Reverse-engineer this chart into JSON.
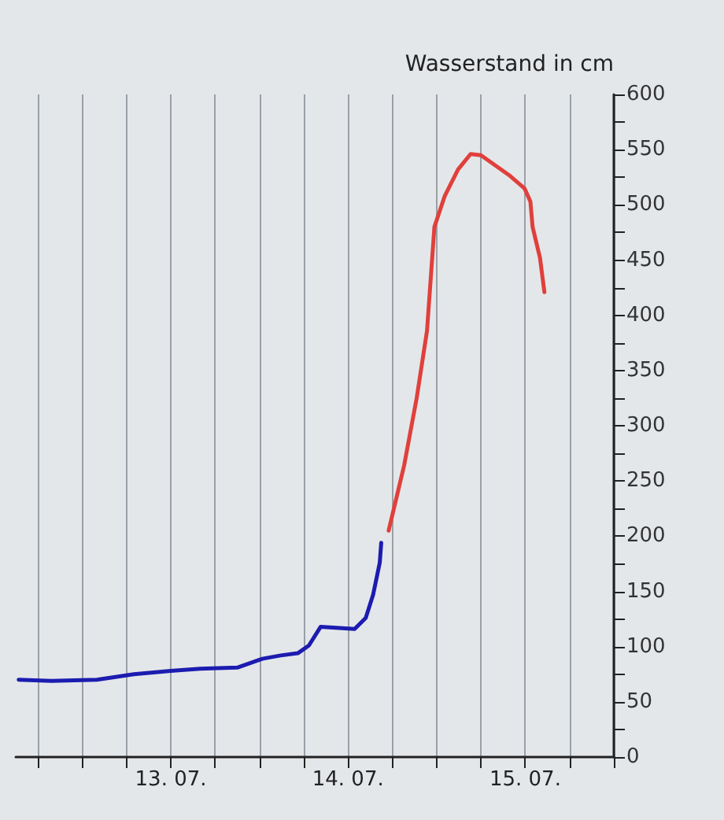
{
  "chart_data": {
    "type": "line",
    "ylabel": "Wasserstand in cm",
    "xlim": [
      "--07-12T15:00",
      "--07-16T00:00"
    ],
    "ylim": [
      0,
      600
    ],
    "xticks": [
      {
        "value": "--07-12T18:00",
        "label": null
      },
      {
        "value": "--07-13T00:00",
        "label": null
      },
      {
        "value": "--07-13T06:00",
        "label": null
      },
      {
        "value": "--07-13T12:00",
        "label": "13. 07."
      },
      {
        "value": "--07-13T18:00",
        "label": null
      },
      {
        "value": "--07-14T00:00",
        "label": null
      },
      {
        "value": "--07-14T06:00",
        "label": null
      },
      {
        "value": "--07-14T12:00",
        "label": "14. 07."
      },
      {
        "value": "--07-14T18:00",
        "label": null
      },
      {
        "value": "--07-15T00:00",
        "label": null
      },
      {
        "value": "--07-15T06:00",
        "label": null
      },
      {
        "value": "--07-15T12:00",
        "label": "15. 07."
      },
      {
        "value": "--07-15T18:00",
        "label": null
      },
      {
        "value": "--07-16T00:00",
        "label": null
      }
    ],
    "yticks": [
      0,
      {
        "value": 25,
        "label": null
      },
      50,
      {
        "value": 75,
        "label": null
      },
      100,
      {
        "value": 125,
        "label": null
      },
      150,
      {
        "value": 175,
        "label": null
      },
      200,
      {
        "value": 225,
        "label": null
      },
      250,
      {
        "value": 275,
        "label": null
      },
      300,
      {
        "value": 325,
        "label": null
      },
      350,
      {
        "value": 375,
        "label": null
      },
      400,
      {
        "value": 425,
        "label": null
      },
      450,
      {
        "value": 475,
        "label": null
      },
      500,
      {
        "value": 525,
        "label": null
      },
      550,
      {
        "value": 575,
        "label": null
      },
      600
    ],
    "grid": "x",
    "marker": "none",
    "series": [
      {
        "color": "#1c1cb0",
        "x": [
          "--07-12T15:24",
          "--07-12T19:48",
          "--07-13T02:00",
          "--07-13T07:00",
          "--07-13T12:00",
          "--07-13T16:00",
          "--07-13T21:00",
          "--07-14T00:24",
          "--07-14T02:54",
          "--07-14T05:12",
          "--07-14T06:42",
          "--07-14T08:18",
          "--07-14T10:24",
          "--07-14T12:54",
          "--07-14T14:24",
          "--07-14T15:24",
          "--07-14T16:18",
          "--07-14T16:30"
        ],
        "values": [
          70,
          69,
          70,
          75,
          78,
          80,
          81,
          89,
          92,
          94,
          101,
          118,
          117,
          116,
          126,
          147,
          176,
          194
        ]
      },
      {
        "color": "#e0403c",
        "x": [
          "--07-14T17:30",
          "--07-14T19:36",
          "--07-14T21:18",
          "--07-14T22:42",
          "--07-14T23:42",
          "--07-15T01:06",
          "--07-15T02:54",
          "--07-15T04:36",
          "--07-15T06:00",
          "--07-15T09:48",
          "--07-15T11:54",
          "--07-15T12:42",
          "--07-15T13:00",
          "--07-15T14:00",
          "--07-15T14:36"
        ],
        "values": [
          205,
          264,
          325,
          386,
          480,
          508,
          532,
          546,
          545,
          527,
          515,
          503,
          480,
          452,
          421
        ]
      }
    ]
  }
}
